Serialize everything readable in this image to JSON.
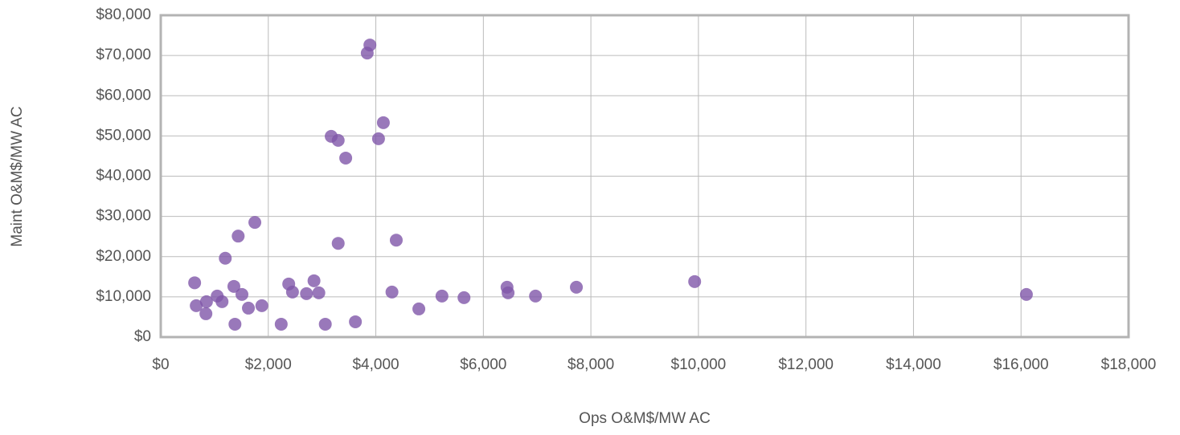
{
  "chart_data": {
    "type": "scatter",
    "xlabel": "Ops O&M$/MW AC",
    "ylabel": "Maint O&M$/MW AC",
    "color": "#7f56a9",
    "grid": true,
    "xlim": [
      0,
      18000
    ],
    "ylim": [
      0,
      80000
    ],
    "xticks": [
      {
        "value": 0,
        "label": "$0"
      },
      {
        "value": 2000,
        "label": "$2,000"
      },
      {
        "value": 4000,
        "label": "$4,000"
      },
      {
        "value": 6000,
        "label": "$6,000"
      },
      {
        "value": 8000,
        "label": "$8,000"
      },
      {
        "value": 10000,
        "label": "$10,000"
      },
      {
        "value": 12000,
        "label": "$12,000"
      },
      {
        "value": 14000,
        "label": "$14,000"
      },
      {
        "value": 16000,
        "label": "$16,000"
      },
      {
        "value": 18000,
        "label": "$18,000"
      }
    ],
    "yticks": [
      {
        "value": 0,
        "label": "$0"
      },
      {
        "value": 10000,
        "label": "$10,000"
      },
      {
        "value": 20000,
        "label": "$20,000"
      },
      {
        "value": 30000,
        "label": "$30,000"
      },
      {
        "value": 40000,
        "label": "$40,000"
      },
      {
        "value": 50000,
        "label": "$50,000"
      },
      {
        "value": 60000,
        "label": "$60,000"
      },
      {
        "value": 70000,
        "label": "$70,000"
      },
      {
        "value": 80000,
        "label": "$80,000"
      }
    ],
    "x": [
      630,
      660,
      840,
      850,
      1050,
      1140,
      1200,
      1360,
      1380,
      1440,
      1510,
      1630,
      1750,
      1880,
      2240,
      2380,
      2450,
      2710,
      2850,
      2940,
      3060,
      3170,
      3300,
      3300,
      3440,
      3620,
      3840,
      3890,
      4050,
      4140,
      4300,
      4380,
      4800,
      5230,
      5640,
      6440,
      6460,
      6970,
      7730,
      9930,
      16100
    ],
    "values": [
      13500,
      7800,
      5800,
      8800,
      10200,
      8800,
      19600,
      12600,
      3200,
      25100,
      10600,
      7200,
      28500,
      7800,
      3200,
      13200,
      11200,
      10800,
      14000,
      11000,
      3200,
      49900,
      23300,
      48900,
      44500,
      3800,
      70600,
      72600,
      49300,
      53300,
      11200,
      24100,
      7000,
      10200,
      9800,
      12400,
      11000,
      10200,
      12400,
      13800,
      10600
    ]
  }
}
